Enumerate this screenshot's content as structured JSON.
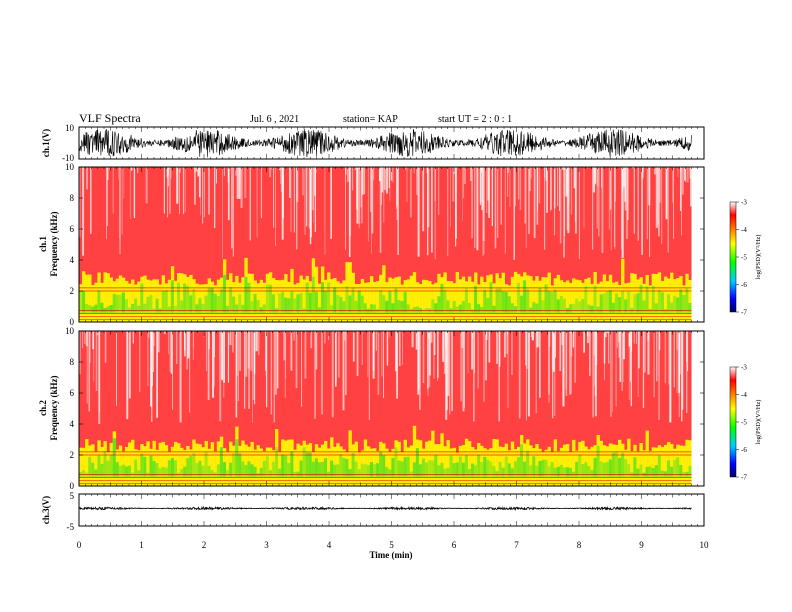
{
  "header": {
    "title": "VLF Spectra",
    "date": "Jul. 6 , 2021",
    "station": "station= KAP",
    "start": "start UT = 2 : 0 : 1"
  },
  "chart_data": [
    {
      "type": "line",
      "title": "",
      "ylabel": "ch.1(V)",
      "ylim": [
        -10,
        10
      ],
      "y_ticks": [
        "10",
        "-10"
      ],
      "xlim": [
        0,
        10
      ],
      "series": [
        {
          "color": "#000000",
          "mean": 0,
          "amplitude": 9,
          "x_end": 9.8
        }
      ]
    },
    {
      "type": "heatmap",
      "title": "",
      "ylabel": "ch.1\nFrequency (kHz)",
      "ylim": [
        0,
        10
      ],
      "y_ticks": [
        "0",
        "2",
        "4",
        "6",
        "8",
        "10"
      ],
      "xlim": [
        0,
        9.8
      ],
      "band_top_kHz": 2.8,
      "band_color": "#ffff00",
      "secondary_color": "#22dd22",
      "background_color": "#ff2020"
    },
    {
      "type": "heatmap",
      "title": "",
      "ylabel": "ch.2\nFrequency (kHz)",
      "ylim": [
        0,
        10
      ],
      "y_ticks": [
        "0",
        "2",
        "4",
        "6",
        "8",
        "10"
      ],
      "xlim": [
        0,
        9.8
      ],
      "band_top_kHz": 2.6,
      "band_color": "#ffff00",
      "secondary_color": "#22dd22",
      "background_color": "#ff2020"
    },
    {
      "type": "line",
      "title": "",
      "ylabel": "ch.3(V)",
      "ylim": [
        -5,
        5
      ],
      "y_ticks": [
        "5",
        "-5"
      ],
      "xlim": [
        0,
        10
      ],
      "x_ticks": [
        "0",
        "1",
        "2",
        "3",
        "4",
        "5",
        "6",
        "7",
        "8",
        "9",
        "10"
      ],
      "xlabel": "Time (min)",
      "series": [
        {
          "color": "#000000",
          "mean": 0.5,
          "amplitude": 0.4,
          "x_end": 9.8
        }
      ]
    }
  ],
  "colorbars": [
    {
      "ticks": [
        "-3",
        "-4",
        "-5",
        "-6",
        "-7"
      ],
      "label": "log(PSD)(V²/Hz)",
      "colors": [
        "#ffffff",
        "#ff0000",
        "#ffff00",
        "#00ff00",
        "#00ccff",
        "#0000ff",
        "#000066"
      ]
    },
    {
      "ticks": [
        "-3",
        "-4",
        "-5",
        "-6",
        "-7"
      ],
      "label": "log(PSD)(V²/Hz)",
      "colors": [
        "#ffffff",
        "#ff0000",
        "#ffff00",
        "#00ff00",
        "#00ccff",
        "#0000ff",
        "#000066"
      ]
    }
  ]
}
